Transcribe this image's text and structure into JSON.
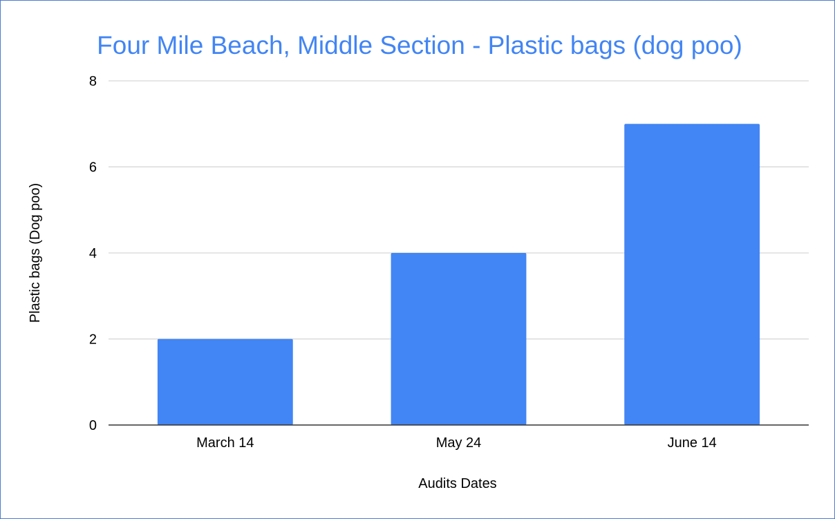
{
  "chart_data": {
    "type": "bar",
    "title": "Four Mile Beach, Middle Section - Plastic bags (dog poo)",
    "xlabel": "Audits Dates",
    "ylabel": "Plastic bags (Dog poo)",
    "categories": [
      "March 14",
      "May 24",
      "June 14"
    ],
    "values": [
      2,
      4,
      7
    ],
    "ylim": [
      0,
      8
    ],
    "yticks": [
      0,
      2,
      4,
      6,
      8
    ],
    "grid": true,
    "legend": "none",
    "colors": {
      "bar": "#4285f4",
      "title": "#4285f4",
      "grid": "#cccccc",
      "baseline": "#333333",
      "border": "#4a7bd0"
    }
  }
}
